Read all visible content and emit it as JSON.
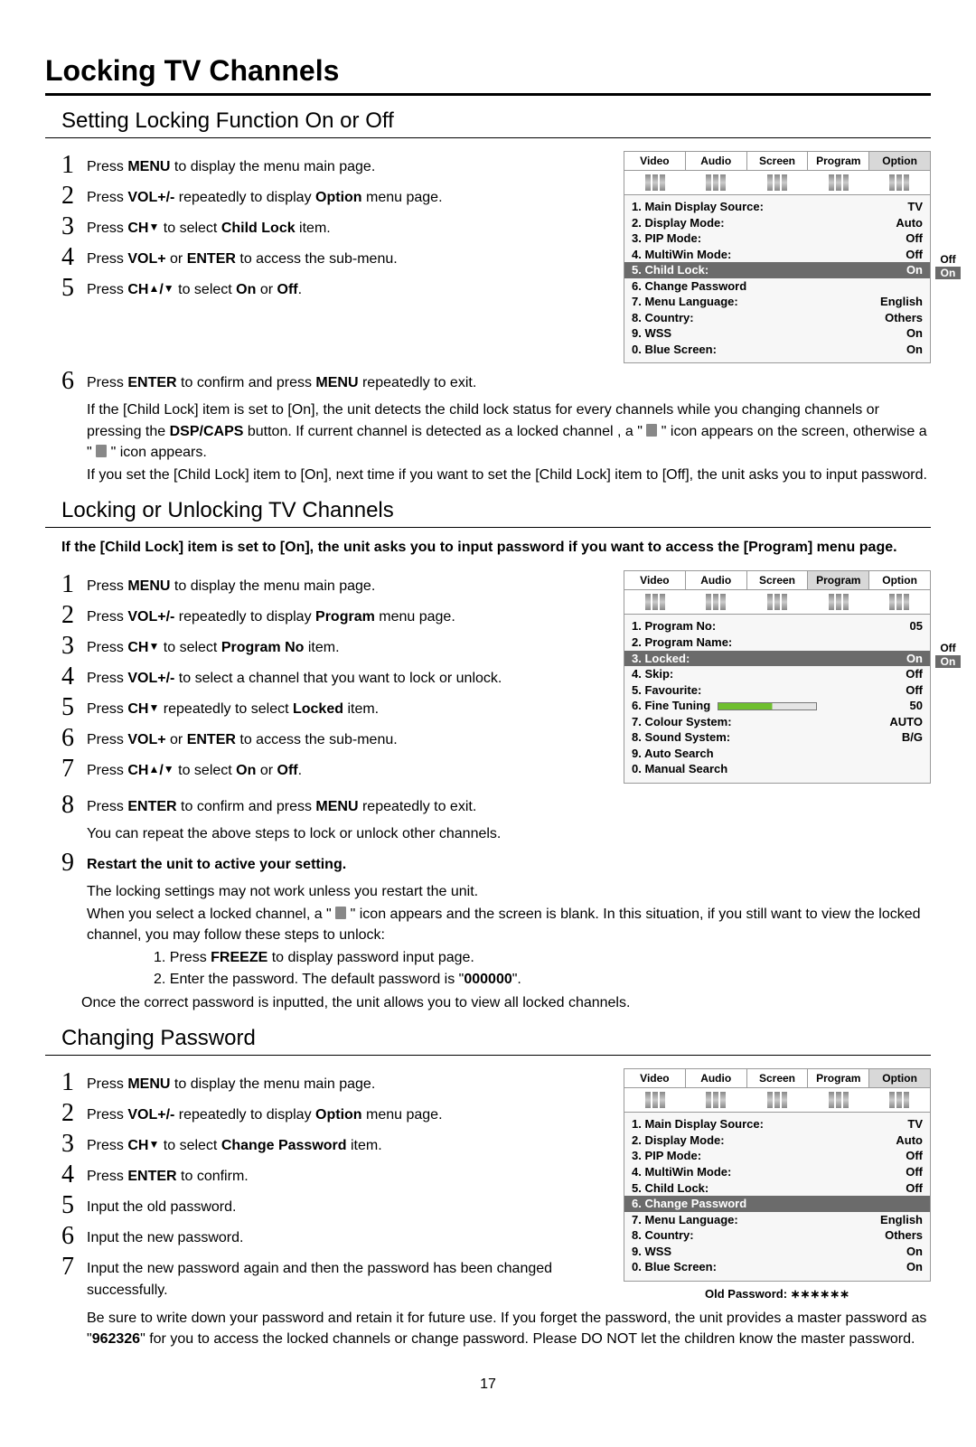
{
  "pageTitle": "Locking TV Channels",
  "pageNumber": "17",
  "sections": {
    "s1": {
      "heading": "Setting Locking Function On or Off",
      "steps": {
        "n1": "1",
        "t1": "Press <b>MENU</b> to display the menu main page.",
        "n2": "2",
        "t2": "Press <b>VOL+/-</b> repeatedly to display <b>Option</b> menu page.",
        "n3": "3",
        "t3": "Press <b>CH</b><span class='arrow'>▼</span> to select <b>Child Lock</b> item.",
        "n4": "4",
        "t4": "Press <b>VOL+</b> or <b>ENTER</b> to access the sub-menu.",
        "n5": "5",
        "t5": "Press <b>CH</b><span class='arrow'>▲</span><b>/</b><span class='arrow'>▼</span> to select <b>On</b> or <b>Off</b>.",
        "n6": "6",
        "t6": "Press <b>ENTER</b> to confirm and press <b>MENU</b> repeatedly to exit."
      },
      "para1": "If the [Child Lock] item is set to [On], the unit detects the child lock status for every channels while you changing channels or pressing the <b>DSP/CAPS</b> button. If current channel is detected as a locked channel , a \" <span class='lockicon'></span> \" icon appears on the screen, otherwise a \" <span class='lockicon'></span> \" icon appears.",
      "para2": "If you set the [Child Lock] item to [On], next time if you want to set the [Child Lock] item to [Off], the unit asks you to input password."
    },
    "s2": {
      "heading": "Locking or Unlocking TV Channels",
      "note": "If the [Child Lock] item is set to [On], the unit asks you to input password if you want to access the [Program] menu page.",
      "steps": {
        "n1": "1",
        "t1": "Press <b>MENU</b> to display the menu main page.",
        "n2": "2",
        "t2": "Press <b>VOL+/-</b> repeatedly to display <b>Program</b> menu page.",
        "n3": "3",
        "t3": "Press <b>CH</b><span class='arrow'>▼</span> to select <b>Program No</b> item.",
        "n4": "4",
        "t4": "Press <b>VOL+/-</b> to select a channel that you want to lock or unlock.",
        "n5": "5",
        "t5": "Press <b>CH</b><span class='arrow'>▼</span> repeatedly to select <b>Locked</b> item.",
        "n6": "6",
        "t6": "Press <b>VOL+</b> or <b>ENTER</b> to access the sub-menu.",
        "n7": "7",
        "t7": "Press <b>CH</b><span class='arrow'>▲</span><b>/</b><span class='arrow'>▼</span>  to select <b>On</b> or <b>Off</b>.",
        "n8": "8",
        "t8": "Press <b>ENTER</b> to confirm and press <b>MENU</b> repeatedly to exit.",
        "t8b": "You can repeat the above steps to lock or unlock other channels.",
        "n9": "9",
        "t9": "<b>Restart the unit to active your setting.</b>",
        "t9b": "The locking settings may not work unless you restart the unit.",
        "t9c": "When you select a locked channel, a \" <span class='lockicon'></span> \" icon appears and the screen is blank. In this situation, if you still want to view the locked channel, you may follow these steps to unlock:"
      },
      "sub": {
        "a": "1. Press <b>FREEZE</b> to display password input page.",
        "b": "2. Enter the password. The default password is \"<b>000000</b>\"."
      },
      "after": "Once the correct password is inputted, the unit allows you to view all locked channels."
    },
    "s3": {
      "heading": "Changing Password",
      "steps": {
        "n1": "1",
        "t1": "Press <b>MENU</b> to display the menu main page.",
        "n2": "2",
        "t2": "Press <b>VOL+/-</b> repeatedly to display <b>Option</b> menu page.",
        "n3": "3",
        "t3": "Press <b>CH</b><span class='arrow'>▼</span> to select <b>Change Password</b> item.",
        "n4": "4",
        "t4": "Press <b>ENTER</b> to confirm.",
        "n5": "5",
        "t5": "Input the old password.",
        "n6": "6",
        "t6": "Input the new password.",
        "n7": "7",
        "t7": "Input the new password again and then the password has been changed successfully."
      },
      "para": "Be sure to write down your password and retain it for future use. If you forget the password, the unit provides a master password as \"<b>962326</b>\" for you to access the locked channels or change password. Please DO NOT let the children know the master password."
    }
  },
  "osd": {
    "tabs": [
      "Video",
      "Audio",
      "Screen",
      "Program",
      "Option"
    ],
    "panel1": {
      "activeTab": 4,
      "rows": [
        {
          "k": "1. Main Display Source:",
          "v": "TV"
        },
        {
          "k": "2. Display Mode:",
          "v": "Auto"
        },
        {
          "k": "3. PIP Mode:",
          "v": "Off"
        },
        {
          "k": "4. MultiWin Mode:",
          "v": "Off"
        },
        {
          "k": "5. Child Lock:",
          "v": "On",
          "hl": true
        },
        {
          "k": "6. Change Password",
          "v": ""
        },
        {
          "k": "7. Menu Language:",
          "v": "English"
        },
        {
          "k": "8. Country:",
          "v": "Others"
        },
        {
          "k": "9. WSS",
          "v": "On"
        },
        {
          "k": "0. Blue Screen:",
          "v": "On"
        }
      ],
      "sideOff": "Off",
      "sideOn": "On",
      "sideTop": 112
    },
    "panel2": {
      "activeTab": 3,
      "rows": [
        {
          "k": "1. Program No:",
          "v": "05"
        },
        {
          "k": "2. Program Name:",
          "v": ""
        },
        {
          "k": "3. Locked:",
          "v": "On",
          "hl": true
        },
        {
          "k": "4. Skip:",
          "v": "Off"
        },
        {
          "k": "5. Favourite:",
          "v": "Off"
        },
        {
          "k": "6. Fine Tuning",
          "v": "50",
          "bar": true
        },
        {
          "k": "7. Colour System:",
          "v": "AUTO"
        },
        {
          "k": "8. Sound System:",
          "v": "B/G"
        },
        {
          "k": "9. Auto Search",
          "v": ""
        },
        {
          "k": "0. Manual Search",
          "v": ""
        }
      ],
      "sideOff": "Off",
      "sideOn": "On",
      "sideTop": 78
    },
    "panel3": {
      "activeTab": 4,
      "rows": [
        {
          "k": "1. Main Display Source:",
          "v": "TV"
        },
        {
          "k": "2. Display Mode:",
          "v": "Auto"
        },
        {
          "k": "3. PIP Mode:",
          "v": "Off"
        },
        {
          "k": "4. MultiWin Mode:",
          "v": "Off"
        },
        {
          "k": "5. Child Lock:",
          "v": "Off"
        },
        {
          "k": "6. Change Password",
          "v": "",
          "hl": true
        },
        {
          "k": "7. Menu Language:",
          "v": "English"
        },
        {
          "k": "8. Country:",
          "v": "Others"
        },
        {
          "k": "9. WSS",
          "v": "On"
        },
        {
          "k": "0. Blue Screen:",
          "v": "On"
        }
      ],
      "oldpw": "Old Password: ∗∗∗∗∗∗"
    }
  }
}
